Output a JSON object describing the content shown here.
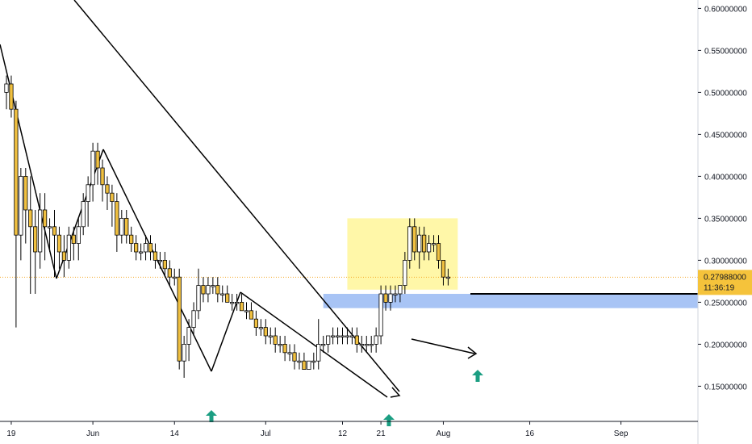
{
  "chart_data": {
    "type": "candlestick",
    "ylim": [
      0.11,
      0.61
    ],
    "y_ticks": [
      "0.15000000",
      "0.20000000",
      "0.25000000",
      "0.30000000",
      "0.35000000",
      "0.40000000",
      "0.45000000",
      "0.50000000",
      "0.55000000",
      "0.60000000"
    ],
    "y_tick_values": [
      0.15,
      0.2,
      0.25,
      0.3,
      0.35,
      0.4,
      0.45,
      0.5,
      0.55,
      0.6
    ],
    "x_tick_labels": [
      "19",
      "Jun",
      "14",
      "Jul",
      "12",
      "21",
      "Aug",
      "16",
      "Sep"
    ],
    "x_tick_index": [
      1,
      18,
      35,
      54,
      70,
      78,
      91,
      109,
      128
    ],
    "last_price": "0.27988000",
    "countdown": "11:36:19",
    "colors": {
      "up_body": "#ffffff",
      "down_body": "#f0c040",
      "wick": "#000000",
      "last_price_bg": "#f5c33b",
      "zone_fill": "#fff7a8",
      "support_fill": "#a8c4f5",
      "arrow": "#1b9e82"
    },
    "candles": [
      [
        0.5,
        0.52,
        0.48,
        0.51
      ],
      [
        0.51,
        0.52,
        0.47,
        0.48
      ],
      [
        0.48,
        0.49,
        0.22,
        0.33
      ],
      [
        0.33,
        0.41,
        0.3,
        0.4
      ],
      [
        0.4,
        0.41,
        0.32,
        0.36
      ],
      [
        0.36,
        0.4,
        0.26,
        0.34
      ],
      [
        0.34,
        0.36,
        0.26,
        0.31
      ],
      [
        0.31,
        0.38,
        0.29,
        0.36
      ],
      [
        0.36,
        0.38,
        0.3,
        0.34
      ],
      [
        0.34,
        0.35,
        0.31,
        0.34
      ],
      [
        0.34,
        0.36,
        0.28,
        0.33
      ],
      [
        0.33,
        0.34,
        0.29,
        0.31
      ],
      [
        0.31,
        0.33,
        0.28,
        0.3
      ],
      [
        0.3,
        0.34,
        0.29,
        0.33
      ],
      [
        0.33,
        0.34,
        0.3,
        0.32
      ],
      [
        0.32,
        0.35,
        0.3,
        0.34
      ],
      [
        0.34,
        0.38,
        0.33,
        0.37
      ],
      [
        0.37,
        0.4,
        0.34,
        0.39
      ],
      [
        0.39,
        0.44,
        0.37,
        0.43
      ],
      [
        0.43,
        0.44,
        0.39,
        0.41
      ],
      [
        0.41,
        0.42,
        0.37,
        0.39
      ],
      [
        0.39,
        0.4,
        0.36,
        0.38
      ],
      [
        0.38,
        0.39,
        0.34,
        0.37
      ],
      [
        0.37,
        0.38,
        0.31,
        0.33
      ],
      [
        0.33,
        0.36,
        0.32,
        0.35
      ],
      [
        0.35,
        0.36,
        0.32,
        0.33
      ],
      [
        0.33,
        0.34,
        0.31,
        0.32
      ],
      [
        0.32,
        0.33,
        0.3,
        0.31
      ],
      [
        0.31,
        0.32,
        0.3,
        0.31
      ],
      [
        0.31,
        0.33,
        0.3,
        0.32
      ],
      [
        0.32,
        0.33,
        0.3,
        0.31
      ],
      [
        0.31,
        0.32,
        0.29,
        0.3
      ],
      [
        0.3,
        0.31,
        0.29,
        0.3
      ],
      [
        0.3,
        0.31,
        0.28,
        0.29
      ],
      [
        0.29,
        0.3,
        0.27,
        0.28
      ],
      [
        0.28,
        0.29,
        0.27,
        0.28
      ],
      [
        0.28,
        0.29,
        0.17,
        0.18
      ],
      [
        0.18,
        0.21,
        0.16,
        0.2
      ],
      [
        0.2,
        0.23,
        0.18,
        0.22
      ],
      [
        0.22,
        0.25,
        0.21,
        0.24
      ],
      [
        0.24,
        0.29,
        0.23,
        0.27
      ],
      [
        0.27,
        0.28,
        0.25,
        0.26
      ],
      [
        0.26,
        0.28,
        0.25,
        0.27
      ],
      [
        0.27,
        0.28,
        0.26,
        0.27
      ],
      [
        0.27,
        0.28,
        0.25,
        0.26
      ],
      [
        0.26,
        0.27,
        0.25,
        0.26
      ],
      [
        0.26,
        0.27,
        0.25,
        0.25
      ],
      [
        0.25,
        0.26,
        0.24,
        0.25
      ],
      [
        0.25,
        0.26,
        0.24,
        0.25
      ],
      [
        0.25,
        0.26,
        0.24,
        0.24
      ],
      [
        0.24,
        0.25,
        0.23,
        0.24
      ],
      [
        0.24,
        0.25,
        0.23,
        0.23
      ],
      [
        0.23,
        0.24,
        0.21,
        0.22
      ],
      [
        0.22,
        0.23,
        0.21,
        0.22
      ],
      [
        0.22,
        0.23,
        0.2,
        0.21
      ],
      [
        0.21,
        0.22,
        0.2,
        0.21
      ],
      [
        0.21,
        0.22,
        0.19,
        0.2
      ],
      [
        0.2,
        0.21,
        0.19,
        0.2
      ],
      [
        0.2,
        0.21,
        0.18,
        0.19
      ],
      [
        0.19,
        0.2,
        0.18,
        0.19
      ],
      [
        0.19,
        0.2,
        0.17,
        0.18
      ],
      [
        0.18,
        0.19,
        0.17,
        0.18
      ],
      [
        0.18,
        0.19,
        0.17,
        0.17
      ],
      [
        0.17,
        0.18,
        0.17,
        0.18
      ],
      [
        0.18,
        0.19,
        0.17,
        0.18
      ],
      [
        0.18,
        0.23,
        0.17,
        0.2
      ],
      [
        0.2,
        0.21,
        0.19,
        0.2
      ],
      [
        0.2,
        0.21,
        0.19,
        0.21
      ],
      [
        0.21,
        0.22,
        0.2,
        0.21
      ],
      [
        0.21,
        0.22,
        0.2,
        0.21
      ],
      [
        0.21,
        0.22,
        0.2,
        0.21
      ],
      [
        0.21,
        0.22,
        0.2,
        0.21
      ],
      [
        0.21,
        0.22,
        0.2,
        0.21
      ],
      [
        0.21,
        0.22,
        0.19,
        0.2
      ],
      [
        0.2,
        0.21,
        0.19,
        0.2
      ],
      [
        0.2,
        0.21,
        0.19,
        0.2
      ],
      [
        0.2,
        0.21,
        0.19,
        0.2
      ],
      [
        0.2,
        0.22,
        0.19,
        0.21
      ],
      [
        0.21,
        0.27,
        0.2,
        0.26
      ],
      [
        0.26,
        0.27,
        0.24,
        0.25
      ],
      [
        0.25,
        0.27,
        0.24,
        0.26
      ],
      [
        0.26,
        0.27,
        0.25,
        0.26
      ],
      [
        0.26,
        0.27,
        0.25,
        0.27
      ],
      [
        0.27,
        0.31,
        0.26,
        0.3
      ],
      [
        0.3,
        0.35,
        0.29,
        0.34
      ],
      [
        0.34,
        0.35,
        0.3,
        0.31
      ],
      [
        0.31,
        0.34,
        0.29,
        0.33
      ],
      [
        0.33,
        0.34,
        0.3,
        0.31
      ],
      [
        0.31,
        0.33,
        0.3,
        0.32
      ],
      [
        0.32,
        0.33,
        0.31,
        0.32
      ],
      [
        0.32,
        0.33,
        0.29,
        0.3
      ],
      [
        0.3,
        0.3,
        0.27,
        0.28
      ],
      [
        0.28,
        0.29,
        0.27,
        0.28
      ]
    ]
  }
}
